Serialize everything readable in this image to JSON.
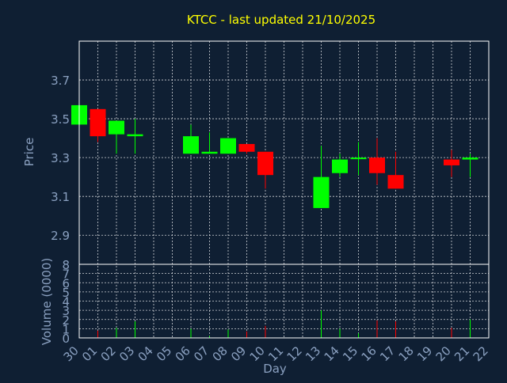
{
  "chart_data": {
    "type": "candlestick",
    "title": "KTCC - last updated 21/10/2025",
    "xlabel": "Day",
    "ylabel": "Price",
    "volume_ylabel": "Volume (0000)",
    "grid": true,
    "colors": {
      "background": "#0f1f33",
      "title": "#ffff00",
      "axis_text": "#8aa0c0",
      "axis_line": "#ffffff",
      "grid": "#ffffff",
      "up": "#00ff00",
      "down": "#ff0000"
    },
    "x_ticks": [
      "30",
      "01",
      "02",
      "03",
      "04",
      "05",
      "06",
      "07",
      "08",
      "09",
      "10",
      "11",
      "12",
      "13",
      "14",
      "15",
      "16",
      "17",
      "18",
      "19",
      "20",
      "21",
      "22"
    ],
    "price_ylim": [
      2.75,
      3.9
    ],
    "price_yticks": [
      "2.9",
      "3.1",
      "3.3",
      "3.5",
      "3.7"
    ],
    "volume_ylim": [
      0,
      8
    ],
    "volume_yticks": [
      "0",
      "1",
      "2",
      "3",
      "4",
      "5",
      "6",
      "7",
      "8"
    ],
    "candles": [
      {
        "day": 0,
        "open": 3.47,
        "high": 3.57,
        "low": 3.47,
        "close": 3.57,
        "volume": 0.3
      },
      {
        "day": 1,
        "open": 3.55,
        "high": 3.55,
        "low": 3.38,
        "close": 3.41,
        "volume": 0.8
      },
      {
        "day": 2,
        "open": 3.42,
        "high": 3.49,
        "low": 3.32,
        "close": 3.49,
        "volume": 1.1
      },
      {
        "day": 3,
        "open": 3.41,
        "high": 3.5,
        "low": 3.32,
        "close": 3.42,
        "volume": 1.8
      },
      {
        "day": 6,
        "open": 3.32,
        "high": 3.47,
        "low": 3.32,
        "close": 3.41,
        "volume": 1.0
      },
      {
        "day": 7,
        "open": 3.32,
        "high": 3.43,
        "low": 3.32,
        "close": 3.33,
        "volume": 0.2
      },
      {
        "day": 8,
        "open": 3.32,
        "high": 3.4,
        "low": 3.32,
        "close": 3.4,
        "volume": 0.9
      },
      {
        "day": 9,
        "open": 3.37,
        "high": 3.37,
        "low": 3.32,
        "close": 3.33,
        "volume": 0.7
      },
      {
        "day": 10,
        "open": 3.33,
        "high": 3.33,
        "low": 3.14,
        "close": 3.21,
        "volume": 1.3
      },
      {
        "day": 13,
        "open": 3.04,
        "high": 3.36,
        "low": 3.04,
        "close": 3.2,
        "volume": 3.0
      },
      {
        "day": 14,
        "open": 3.22,
        "high": 3.32,
        "low": 3.2,
        "close": 3.29,
        "volume": 1.0
      },
      {
        "day": 15,
        "open": 3.3,
        "high": 3.38,
        "low": 3.21,
        "close": 3.3,
        "volume": 0.5
      },
      {
        "day": 16,
        "open": 3.3,
        "high": 3.4,
        "low": 3.16,
        "close": 3.22,
        "volume": 1.9
      },
      {
        "day": 17,
        "open": 3.21,
        "high": 3.33,
        "low": 3.14,
        "close": 3.14,
        "volume": 1.8
      },
      {
        "day": 20,
        "open": 3.29,
        "high": 3.34,
        "low": 3.2,
        "close": 3.26,
        "volume": 1.1
      },
      {
        "day": 21,
        "open": 3.29,
        "high": 3.32,
        "low": 3.2,
        "close": 3.3,
        "volume": 2.0
      }
    ]
  }
}
